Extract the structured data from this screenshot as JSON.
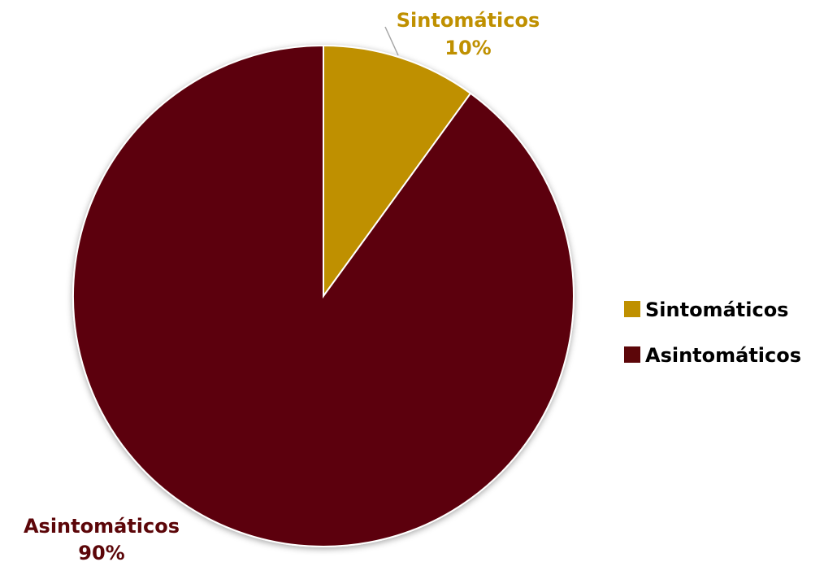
{
  "chart_data": {
    "type": "pie",
    "title": "",
    "categories": [
      "Sintomáticos",
      "Asintomáticos"
    ],
    "values": [
      10,
      90
    ],
    "units": "%",
    "colors": [
      "#BF9000",
      "#5C0609"
    ],
    "data_labels": [
      {
        "category": "Sintomáticos",
        "value": "10%",
        "color": "#BF9000"
      },
      {
        "category": "Asintomáticos",
        "value": "90%",
        "color": "#5C0609"
      }
    ],
    "legend": {
      "position": "right",
      "entries": [
        "Sintomáticos",
        "Asintomáticos"
      ]
    }
  }
}
